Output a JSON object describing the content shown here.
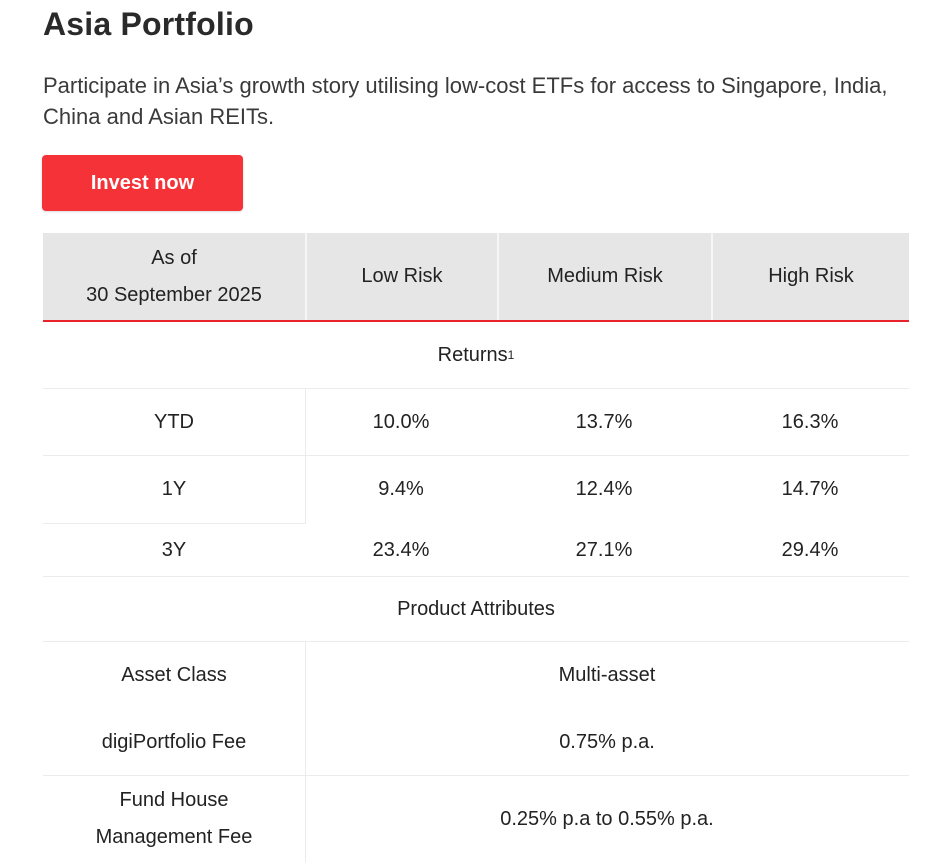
{
  "page": {
    "title": "Asia Portfolio",
    "description": "Participate in Asia’s growth story utilising low-cost ETFs for access to Singapore, India, China and Asian REITs.",
    "invest_button_label": "Invest now",
    "accent_color": "#f53238"
  },
  "table": {
    "header": {
      "as_of_line1": "As of",
      "as_of_line2": "30 September 2025",
      "columns": [
        "Low Risk",
        "Medium Risk",
        "High Risk"
      ]
    },
    "returns_section": {
      "title": "Returns",
      "footnote_marker": "1",
      "rows": [
        {
          "label": "YTD",
          "values": [
            "10.0%",
            "13.7%",
            "16.3%"
          ]
        },
        {
          "label": "1Y",
          "values": [
            "9.4%",
            "12.4%",
            "14.7%"
          ]
        },
        {
          "label": "3Y",
          "values": [
            "23.4%",
            "27.1%",
            "29.4%"
          ]
        }
      ]
    },
    "attributes_section": {
      "title": "Product Attributes",
      "rows": [
        {
          "label": "Asset Class",
          "value": "Multi-asset"
        },
        {
          "label": "digiPortfolio Fee",
          "value": "0.75% p.a."
        },
        {
          "label_line1": "Fund House",
          "label_line2": "Management Fee",
          "value": "0.25% p.a to 0.55% p.a."
        }
      ]
    }
  }
}
